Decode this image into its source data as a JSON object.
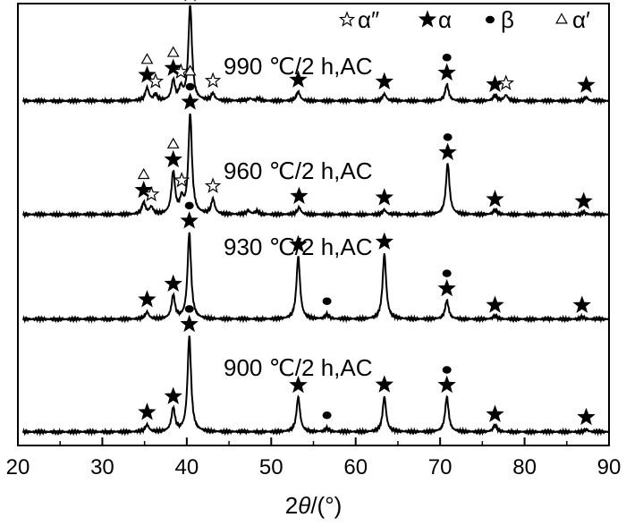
{
  "chart_data": {
    "type": "line",
    "title": "",
    "xlabel_prefix": "2",
    "xlabel_var": "θ",
    "xlabel_suffix": "/(°)",
    "ylabel": "",
    "xlim": [
      20,
      90
    ],
    "x_ticks": [
      "20",
      "30",
      "40",
      "50",
      "60",
      "70",
      "80",
      "90"
    ],
    "x_tick_values": [
      20,
      30,
      40,
      50,
      60,
      70,
      80,
      90
    ],
    "y_ticks_shown": false,
    "grid": false,
    "legend": {
      "placement": "top-right",
      "entries": [
        {
          "symbol": "open-star",
          "label": "α″"
        },
        {
          "symbol": "filled-star",
          "label": "α"
        },
        {
          "symbol": "filled-circle",
          "label": "β"
        },
        {
          "symbol": "open-triangle",
          "label": "α′"
        }
      ]
    },
    "series": [
      {
        "name": "990 ℃/2 h,AC",
        "baseline": 0.04,
        "peaks": [
          {
            "x": 35.3,
            "h": 0.11
          },
          {
            "x": 36.3,
            "h": 0.05
          },
          {
            "x": 38.4,
            "h": 0.17
          },
          {
            "x": 39.3,
            "h": 0.1
          },
          {
            "x": 40.4,
            "h": 0.82
          },
          {
            "x": 43.1,
            "h": 0.06
          },
          {
            "x": 47.5,
            "h": 0.02
          },
          {
            "x": 48.5,
            "h": 0.02
          },
          {
            "x": 53.2,
            "h": 0.08
          },
          {
            "x": 63.4,
            "h": 0.06
          },
          {
            "x": 70.8,
            "h": 0.14
          },
          {
            "x": 76.5,
            "h": 0.05
          },
          {
            "x": 77.8,
            "h": 0.05
          },
          {
            "x": 87.3,
            "h": 0.03
          }
        ],
        "markers": [
          {
            "x": 35.3,
            "symbol": "filled-star"
          },
          {
            "x": 35.3,
            "symbol": "open-triangle"
          },
          {
            "x": 36.3,
            "symbol": "open-star"
          },
          {
            "x": 38.4,
            "symbol": "filled-star"
          },
          {
            "x": 38.4,
            "symbol": "open-triangle"
          },
          {
            "x": 39.3,
            "symbol": "open-star"
          },
          {
            "x": 40.4,
            "symbol": "filled-star"
          },
          {
            "x": 40.4,
            "symbol": "open-triangle"
          },
          {
            "x": 43.1,
            "symbol": "open-star"
          },
          {
            "x": 53.2,
            "symbol": "filled-star"
          },
          {
            "x": 63.4,
            "symbol": "filled-star"
          },
          {
            "x": 70.8,
            "symbol": "filled-star"
          },
          {
            "x": 70.8,
            "symbol": "filled-circle"
          },
          {
            "x": 76.5,
            "symbol": "filled-star"
          },
          {
            "x": 77.8,
            "symbol": "open-star"
          },
          {
            "x": 87.3,
            "symbol": "filled-star"
          }
        ]
      },
      {
        "name": "960 ℃/2 h,AC",
        "baseline": 0.04,
        "peaks": [
          {
            "x": 34.9,
            "h": 0.1
          },
          {
            "x": 35.8,
            "h": 0.06
          },
          {
            "x": 38.4,
            "h": 0.36
          },
          {
            "x": 39.4,
            "h": 0.12
          },
          {
            "x": 40.4,
            "h": 0.86
          },
          {
            "x": 43.1,
            "h": 0.13
          },
          {
            "x": 47.3,
            "h": 0.03
          },
          {
            "x": 48.3,
            "h": 0.03
          },
          {
            "x": 53.3,
            "h": 0.06
          },
          {
            "x": 63.4,
            "h": 0.04
          },
          {
            "x": 70.9,
            "h": 0.44
          },
          {
            "x": 76.5,
            "h": 0.04
          },
          {
            "x": 87.0,
            "h": 0.02
          }
        ],
        "markers": [
          {
            "x": 34.9,
            "symbol": "open-triangle"
          },
          {
            "x": 34.9,
            "symbol": "filled-star"
          },
          {
            "x": 35.8,
            "symbol": "open-star"
          },
          {
            "x": 38.4,
            "symbol": "filled-star"
          },
          {
            "x": 38.4,
            "symbol": "open-triangle"
          },
          {
            "x": 39.4,
            "symbol": "open-star"
          },
          {
            "x": 40.4,
            "symbol": "filled-star"
          },
          {
            "x": 40.4,
            "symbol": "filled-circle"
          },
          {
            "x": 40.4,
            "symbol": "open-triangle"
          },
          {
            "x": 43.1,
            "symbol": "open-star"
          },
          {
            "x": 53.3,
            "symbol": "filled-star"
          },
          {
            "x": 63.4,
            "symbol": "filled-star"
          },
          {
            "x": 70.9,
            "symbol": "filled-star"
          },
          {
            "x": 70.9,
            "symbol": "filled-circle"
          },
          {
            "x": 76.5,
            "symbol": "filled-star"
          },
          {
            "x": 87.0,
            "symbol": "filled-star"
          }
        ]
      },
      {
        "name": "930 ℃/2 h,AC",
        "baseline": 0.04,
        "peaks": [
          {
            "x": 35.3,
            "h": 0.06
          },
          {
            "x": 38.4,
            "h": 0.2
          },
          {
            "x": 40.3,
            "h": 0.74
          },
          {
            "x": 53.2,
            "h": 0.54
          },
          {
            "x": 56.6,
            "h": 0.04
          },
          {
            "x": 63.4,
            "h": 0.56
          },
          {
            "x": 70.8,
            "h": 0.16
          },
          {
            "x": 76.5,
            "h": 0.03
          },
          {
            "x": 86.8,
            "h": 0.02
          }
        ],
        "markers": [
          {
            "x": 35.3,
            "symbol": "filled-star"
          },
          {
            "x": 38.4,
            "symbol": "filled-star"
          },
          {
            "x": 40.3,
            "symbol": "filled-star"
          },
          {
            "x": 40.3,
            "symbol": "filled-circle"
          },
          {
            "x": 53.2,
            "symbol": "filled-star"
          },
          {
            "x": 56.6,
            "symbol": "filled-circle"
          },
          {
            "x": 63.4,
            "symbol": "filled-star"
          },
          {
            "x": 70.8,
            "symbol": "filled-star"
          },
          {
            "x": 70.8,
            "symbol": "filled-circle"
          },
          {
            "x": 76.5,
            "symbol": "filled-star"
          },
          {
            "x": 86.8,
            "symbol": "filled-star"
          }
        ]
      },
      {
        "name": "900 ℃/2 h,AC",
        "baseline": 0.04,
        "peaks": [
          {
            "x": 35.3,
            "h": 0.06
          },
          {
            "x": 38.4,
            "h": 0.2
          },
          {
            "x": 40.3,
            "h": 0.82
          },
          {
            "x": 53.2,
            "h": 0.3
          },
          {
            "x": 56.6,
            "h": 0.03
          },
          {
            "x": 63.4,
            "h": 0.3
          },
          {
            "x": 70.8,
            "h": 0.3
          },
          {
            "x": 76.5,
            "h": 0.06
          },
          {
            "x": 87.3,
            "h": 0.02
          }
        ],
        "markers": [
          {
            "x": 35.3,
            "symbol": "filled-star"
          },
          {
            "x": 38.4,
            "symbol": "filled-star"
          },
          {
            "x": 40.3,
            "symbol": "filled-star"
          },
          {
            "x": 40.3,
            "symbol": "filled-circle"
          },
          {
            "x": 53.2,
            "symbol": "filled-star"
          },
          {
            "x": 56.6,
            "symbol": "filled-circle"
          },
          {
            "x": 63.4,
            "symbol": "filled-star"
          },
          {
            "x": 70.8,
            "symbol": "filled-star"
          },
          {
            "x": 70.8,
            "symbol": "filled-circle"
          },
          {
            "x": 76.5,
            "symbol": "filled-star"
          },
          {
            "x": 87.3,
            "symbol": "filled-star"
          }
        ]
      }
    ],
    "colors": {
      "line": "#000000",
      "background": "#ffffff"
    }
  }
}
